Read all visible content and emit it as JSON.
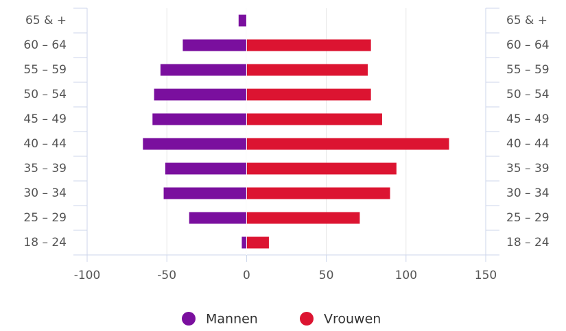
{
  "chart_data": {
    "type": "bar",
    "orientation": "horizontal",
    "categories": [
      "65 & +",
      "60 – 64",
      "55 – 59",
      "50 – 54",
      "45 – 49",
      "40 – 44",
      "35 – 39",
      "30 – 34",
      "25 – 29",
      "18 – 24"
    ],
    "series": [
      {
        "name": "Mannen",
        "color": "#7a0f9e",
        "values": [
          -5,
          -40,
          -54,
          -58,
          -59,
          -65,
          -51,
          -52,
          -36,
          -3
        ]
      },
      {
        "name": "Vrouwen",
        "color": "#dc1431",
        "values": [
          0,
          78,
          76,
          78,
          85,
          127,
          94,
          90,
          71,
          14
        ]
      }
    ],
    "xlim": [
      -100,
      150
    ],
    "xticks": [
      -100,
      -50,
      0,
      50,
      100,
      150
    ],
    "grid": true
  }
}
